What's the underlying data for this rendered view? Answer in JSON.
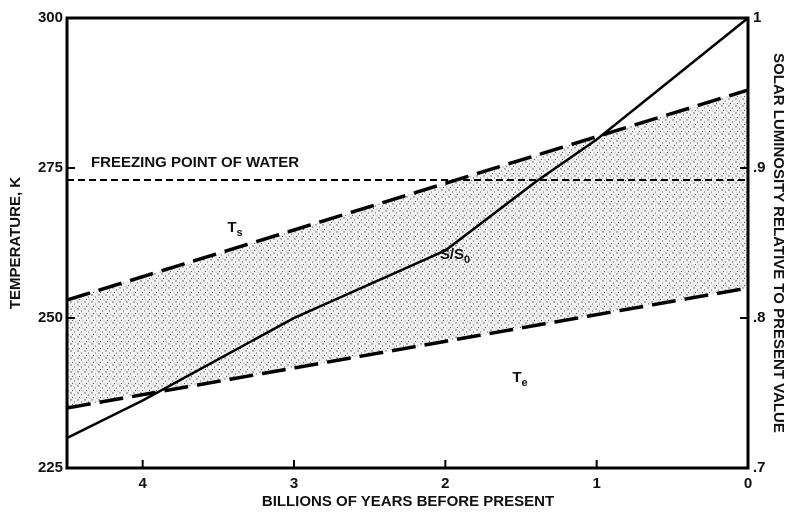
{
  "chart_data": {
    "type": "line",
    "xlabel": "BILLIONS OF YEARS BEFORE PRESENT",
    "ylabel": "TEMPERATURE, K",
    "y2label": "SOLAR LUMINOSITY RELATIVE TO PRESENT VALUE",
    "xlim": [
      4.5,
      0
    ],
    "xticks": [
      4,
      3,
      2,
      1,
      0
    ],
    "ylim": [
      225,
      300
    ],
    "yticks": [
      225,
      250,
      275,
      300
    ],
    "y2lim": [
      0.7,
      1.0
    ],
    "y2ticks": [
      {
        "value": 0.7,
        "label": ".7"
      },
      {
        "value": 0.8,
        "label": ".8"
      },
      {
        "value": 0.9,
        "label": ".9"
      },
      {
        "value": 1,
        "label": "1"
      }
    ],
    "series": [
      {
        "name": "Ts",
        "color": "#000000",
        "dashed": true,
        "x": [
          4.5,
          0
        ],
        "values": [
          253,
          288
        ]
      },
      {
        "name": "Te",
        "color": "#000000",
        "dashed": true,
        "x": [
          4.5,
          0
        ],
        "values": [
          235,
          255
        ]
      },
      {
        "name": "S/S0",
        "color": "#000000",
        "dashed": false,
        "axis": "y2",
        "x": [
          4.5,
          4,
          3,
          2,
          1.4,
          1,
          0
        ],
        "values": [
          0.72,
          0.745,
          0.8,
          0.845,
          0.891,
          0.919,
          1.0
        ]
      }
    ],
    "annotations": [
      {
        "text": "FREEZING POINT OF WATER",
        "y": 273
      }
    ]
  }
}
